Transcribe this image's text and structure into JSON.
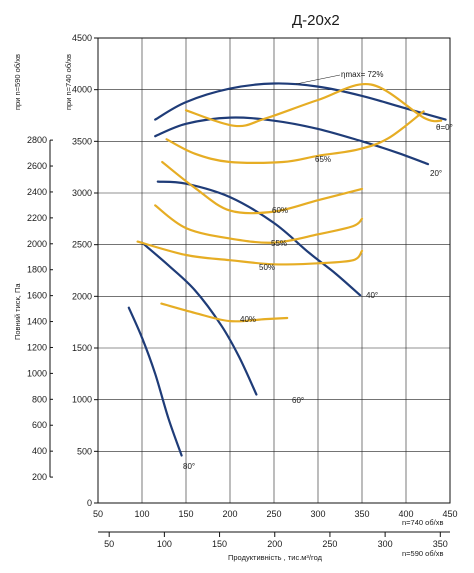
{
  "chart_data": {
    "type": "line",
    "title": "Д-20х2",
    "x_axis_top": {
      "label_suffix": "n=740 об/хв",
      "ticks": [
        50,
        100,
        150,
        200,
        250,
        300,
        350,
        400,
        450
      ],
      "xlim": [
        50,
        450
      ]
    },
    "x_axis_bottom": {
      "label": "Продуктивність , тис.м³/год",
      "label_suffix": "n=590 об/хв",
      "ticks": [
        50,
        100,
        150,
        200,
        250,
        300,
        350
      ]
    },
    "y_axis_inner": {
      "label": "при n=740 об/хв",
      "ticks": [
        0,
        500,
        1000,
        1500,
        2000,
        2500,
        3000,
        3500,
        4000,
        4500
      ],
      "ylim": [
        0,
        4500
      ]
    },
    "y_axis_outer": {
      "label": "при n=590 об/хв",
      "ticks": [
        200,
        400,
        600,
        800,
        1000,
        1200,
        1400,
        1600,
        1800,
        2000,
        2200,
        2400,
        2600,
        2800
      ]
    },
    "y_axis_main_label": "Повний тиск, Па",
    "pressure_curves": [
      {
        "label": "θ=0°",
        "points": [
          [
            115,
            3710
          ],
          [
            150,
            3880
          ],
          [
            200,
            4010
          ],
          [
            250,
            4060
          ],
          [
            300,
            4030
          ],
          [
            350,
            3940
          ],
          [
            395,
            3830
          ],
          [
            445,
            3710
          ]
        ]
      },
      {
        "label": "20°",
        "points": [
          [
            115,
            3550
          ],
          [
            150,
            3670
          ],
          [
            200,
            3730
          ],
          [
            250,
            3700
          ],
          [
            300,
            3620
          ],
          [
            350,
            3500
          ],
          [
            390,
            3390
          ],
          [
            425,
            3280
          ]
        ]
      },
      {
        "label": "40°",
        "points": [
          [
            118,
            3110
          ],
          [
            150,
            3090
          ],
          [
            200,
            2960
          ],
          [
            250,
            2710
          ],
          [
            290,
            2420
          ],
          [
            320,
            2220
          ],
          [
            348,
            2010
          ]
        ]
      },
      {
        "label": "60°",
        "points": [
          [
            100,
            2520
          ],
          [
            130,
            2300
          ],
          [
            160,
            2060
          ],
          [
            190,
            1720
          ],
          [
            210,
            1420
          ],
          [
            230,
            1050
          ]
        ]
      },
      {
        "label": "80°",
        "points": [
          [
            85,
            1890
          ],
          [
            100,
            1600
          ],
          [
            115,
            1250
          ],
          [
            130,
            820
          ],
          [
            145,
            460
          ]
        ]
      }
    ],
    "efficiency_curves": [
      {
        "label": "ηmax= 72%",
        "points": [
          [
            150,
            3800
          ],
          [
            205,
            3650
          ],
          [
            240,
            3720
          ],
          [
            300,
            3900
          ],
          [
            360,
            4050
          ],
          [
            420,
            3730
          ],
          [
            440,
            3700
          ]
        ]
      },
      {
        "label": "65%",
        "points": [
          [
            128,
            3520
          ],
          [
            160,
            3380
          ],
          [
            200,
            3300
          ],
          [
            260,
            3300
          ],
          [
            300,
            3360
          ],
          [
            345,
            3420
          ],
          [
            380,
            3530
          ],
          [
            420,
            3790
          ]
        ]
      },
      {
        "label": "60%",
        "points": [
          [
            123,
            3300
          ],
          [
            160,
            3050
          ],
          [
            200,
            2830
          ],
          [
            250,
            2820
          ],
          [
            300,
            2930
          ],
          [
            350,
            3040
          ]
        ]
      },
      {
        "label": "55%",
        "points": [
          [
            115,
            2880
          ],
          [
            150,
            2660
          ],
          [
            200,
            2560
          ],
          [
            250,
            2520
          ],
          [
            300,
            2600
          ],
          [
            340,
            2680
          ],
          [
            350,
            2750
          ]
        ]
      },
      {
        "label": "50%",
        "points": [
          [
            95,
            2530
          ],
          [
            150,
            2400
          ],
          [
            200,
            2350
          ],
          [
            250,
            2310
          ],
          [
            300,
            2320
          ],
          [
            340,
            2350
          ],
          [
            350,
            2440
          ]
        ]
      },
      {
        "label": "40%",
        "points": [
          [
            122,
            1930
          ],
          [
            160,
            1840
          ],
          [
            200,
            1760
          ],
          [
            240,
            1780
          ],
          [
            265,
            1790
          ]
        ]
      }
    ],
    "colors": {
      "pressure": "#1f3c78",
      "efficiency": "#e6ad24"
    },
    "grid": true
  }
}
